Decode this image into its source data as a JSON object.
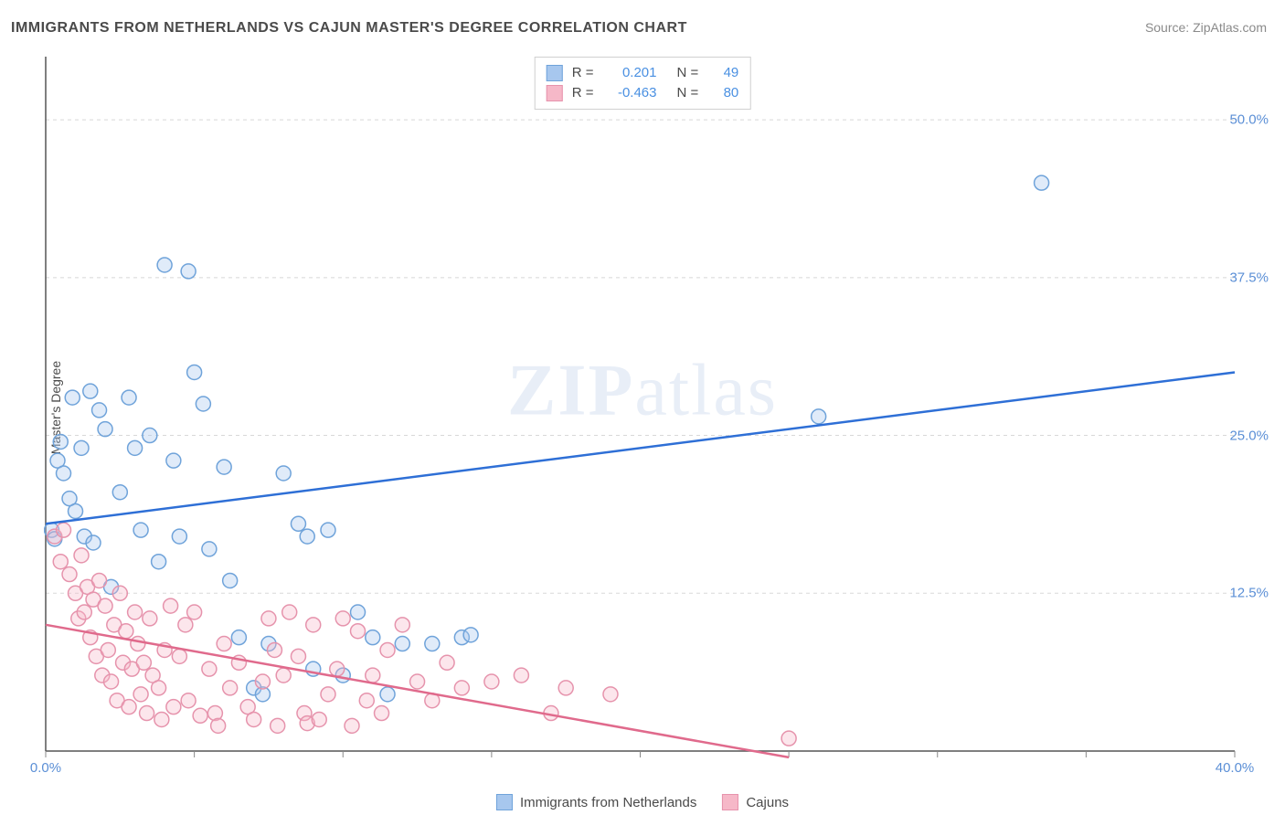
{
  "title": "IMMIGRANTS FROM NETHERLANDS VS CAJUN MASTER'S DEGREE CORRELATION CHART",
  "source_label": "Source:",
  "source_name": "ZipAtlas.com",
  "y_axis_label": "Master's Degree",
  "watermark_bold": "ZIP",
  "watermark_rest": "atlas",
  "chart": {
    "type": "scatter",
    "background_color": "#ffffff",
    "grid_color": "#d8d8d8",
    "axis_color": "#555555",
    "tick_color": "#888888",
    "xlim": [
      0,
      40
    ],
    "ylim": [
      0,
      55
    ],
    "x_ticks": [
      0,
      5,
      10,
      15,
      20,
      25,
      30,
      35,
      40
    ],
    "x_tick_labels": {
      "0": "0.0%",
      "40": "40.0%"
    },
    "y_ticks": [
      12.5,
      25.0,
      37.5,
      50.0
    ],
    "y_tick_labels": [
      "12.5%",
      "25.0%",
      "37.5%",
      "50.0%"
    ],
    "marker_radius": 8,
    "marker_stroke_width": 1.5,
    "marker_fill_opacity": 0.35,
    "trend_line_width": 2.5,
    "series": [
      {
        "name": "Immigrants from Netherlands",
        "color_fill": "#a7c7ee",
        "color_stroke": "#6fa3da",
        "trend_color": "#2e6fd6",
        "R": "0.201",
        "N": "49",
        "trend": {
          "x1": 0,
          "y1": 18.0,
          "x2": 40,
          "y2": 30.0
        },
        "points": [
          [
            0.2,
            17.5
          ],
          [
            0.3,
            16.8
          ],
          [
            0.4,
            23.0
          ],
          [
            0.5,
            24.5
          ],
          [
            0.6,
            22.0
          ],
          [
            0.8,
            20.0
          ],
          [
            0.9,
            28.0
          ],
          [
            1.0,
            19.0
          ],
          [
            1.2,
            24.0
          ],
          [
            1.3,
            17.0
          ],
          [
            1.5,
            28.5
          ],
          [
            1.6,
            16.5
          ],
          [
            1.8,
            27.0
          ],
          [
            2.0,
            25.5
          ],
          [
            2.2,
            13.0
          ],
          [
            2.5,
            20.5
          ],
          [
            2.8,
            28.0
          ],
          [
            3.0,
            24.0
          ],
          [
            3.2,
            17.5
          ],
          [
            3.5,
            25.0
          ],
          [
            3.8,
            15.0
          ],
          [
            4.0,
            38.5
          ],
          [
            4.3,
            23.0
          ],
          [
            4.5,
            17.0
          ],
          [
            4.8,
            38.0
          ],
          [
            5.0,
            30.0
          ],
          [
            5.3,
            27.5
          ],
          [
            5.5,
            16.0
          ],
          [
            6.0,
            22.5
          ],
          [
            6.2,
            13.5
          ],
          [
            6.5,
            9.0
          ],
          [
            7.0,
            5.0
          ],
          [
            7.3,
            4.5
          ],
          [
            7.5,
            8.5
          ],
          [
            8.0,
            22.0
          ],
          [
            8.5,
            18.0
          ],
          [
            8.8,
            17.0
          ],
          [
            9.0,
            6.5
          ],
          [
            9.5,
            17.5
          ],
          [
            10.0,
            6.0
          ],
          [
            10.5,
            11.0
          ],
          [
            11.0,
            9.0
          ],
          [
            11.5,
            4.5
          ],
          [
            12.0,
            8.5
          ],
          [
            13.0,
            8.5
          ],
          [
            14.0,
            9.0
          ],
          [
            14.3,
            9.2
          ],
          [
            26.0,
            26.5
          ],
          [
            33.5,
            45.0
          ]
        ]
      },
      {
        "name": "Cajuns",
        "color_fill": "#f6b8c8",
        "color_stroke": "#e693ac",
        "trend_color": "#e06a8c",
        "R": "-0.463",
        "N": "80",
        "trend": {
          "x1": 0,
          "y1": 10.0,
          "x2": 25,
          "y2": -0.5
        },
        "points": [
          [
            0.3,
            17.0
          ],
          [
            0.5,
            15.0
          ],
          [
            0.6,
            17.5
          ],
          [
            0.8,
            14.0
          ],
          [
            1.0,
            12.5
          ],
          [
            1.1,
            10.5
          ],
          [
            1.2,
            15.5
          ],
          [
            1.3,
            11.0
          ],
          [
            1.4,
            13.0
          ],
          [
            1.5,
            9.0
          ],
          [
            1.6,
            12.0
          ],
          [
            1.7,
            7.5
          ],
          [
            1.8,
            13.5
          ],
          [
            1.9,
            6.0
          ],
          [
            2.0,
            11.5
          ],
          [
            2.1,
            8.0
          ],
          [
            2.2,
            5.5
          ],
          [
            2.3,
            10.0
          ],
          [
            2.4,
            4.0
          ],
          [
            2.5,
            12.5
          ],
          [
            2.6,
            7.0
          ],
          [
            2.7,
            9.5
          ],
          [
            2.8,
            3.5
          ],
          [
            2.9,
            6.5
          ],
          [
            3.0,
            11.0
          ],
          [
            3.1,
            8.5
          ],
          [
            3.2,
            4.5
          ],
          [
            3.3,
            7.0
          ],
          [
            3.4,
            3.0
          ],
          [
            3.5,
            10.5
          ],
          [
            3.6,
            6.0
          ],
          [
            3.8,
            5.0
          ],
          [
            3.9,
            2.5
          ],
          [
            4.0,
            8.0
          ],
          [
            4.2,
            11.5
          ],
          [
            4.3,
            3.5
          ],
          [
            4.5,
            7.5
          ],
          [
            4.7,
            10.0
          ],
          [
            4.8,
            4.0
          ],
          [
            5.0,
            11.0
          ],
          [
            5.2,
            2.8
          ],
          [
            5.5,
            6.5
          ],
          [
            5.7,
            3.0
          ],
          [
            5.8,
            2.0
          ],
          [
            6.0,
            8.5
          ],
          [
            6.2,
            5.0
          ],
          [
            6.5,
            7.0
          ],
          [
            6.8,
            3.5
          ],
          [
            7.0,
            2.5
          ],
          [
            7.3,
            5.5
          ],
          [
            7.5,
            10.5
          ],
          [
            7.7,
            8.0
          ],
          [
            7.8,
            2.0
          ],
          [
            8.0,
            6.0
          ],
          [
            8.2,
            11.0
          ],
          [
            8.5,
            7.5
          ],
          [
            8.7,
            3.0
          ],
          [
            8.8,
            2.2
          ],
          [
            9.0,
            10.0
          ],
          [
            9.2,
            2.5
          ],
          [
            9.5,
            4.5
          ],
          [
            9.8,
            6.5
          ],
          [
            10.0,
            10.5
          ],
          [
            10.3,
            2.0
          ],
          [
            10.5,
            9.5
          ],
          [
            10.8,
            4.0
          ],
          [
            11.0,
            6.0
          ],
          [
            11.3,
            3.0
          ],
          [
            11.5,
            8.0
          ],
          [
            12.0,
            10.0
          ],
          [
            12.5,
            5.5
          ],
          [
            13.0,
            4.0
          ],
          [
            13.5,
            7.0
          ],
          [
            14.0,
            5.0
          ],
          [
            15.0,
            5.5
          ],
          [
            16.0,
            6.0
          ],
          [
            17.0,
            3.0
          ],
          [
            17.5,
            5.0
          ],
          [
            19.0,
            4.5
          ],
          [
            25.0,
            1.0
          ]
        ]
      }
    ]
  },
  "legend_top": {
    "r_label": "R =",
    "n_label": "N ="
  },
  "legend_bottom_items": [
    "Immigrants from Netherlands",
    "Cajuns"
  ]
}
